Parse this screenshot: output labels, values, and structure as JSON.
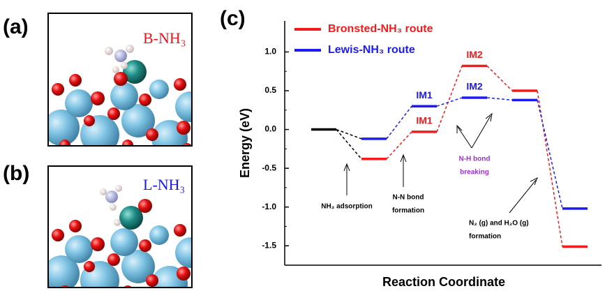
{
  "panels": [
    {
      "label": "(a)",
      "molecule": "B-NH₃",
      "color": "#e8141c"
    },
    {
      "label": "(b)",
      "molecule": "L-NH₃",
      "color": "#1a1aee"
    }
  ],
  "chart_data": {
    "type": "energy-levels",
    "panel_label": "(c)",
    "x_label": "Reaction Coordinate",
    "y_label": "Energy (eV)",
    "categories": [
      null,
      null,
      null,
      null,
      null,
      null
    ],
    "start_color": "#000000",
    "series": [
      {
        "name": "Bronsted-NH₃ route",
        "color": "#f21c1c",
        "values": [
          0,
          -0.38,
          -0.03,
          0.82,
          0.5,
          -1.51
        ],
        "level_labels": [
          null,
          null,
          "IM1",
          "IM2",
          null,
          null
        ]
      },
      {
        "name": "Lewis-NH₃ route",
        "color": "#1c1cf2",
        "values": [
          0,
          -0.12,
          0.3,
          0.41,
          0.38,
          -1.02
        ],
        "level_labels": [
          null,
          null,
          "IM1",
          "IM2",
          null,
          null
        ]
      }
    ],
    "ylim": [
      -1.75,
      1.4
    ],
    "yticks": [
      {
        "value": -1.5,
        "label": "-1.5"
      },
      {
        "value": -1,
        "label": "-1.0"
      },
      -0.5,
      {
        "value": 0,
        "label": "0.0"
      },
      0.5,
      {
        "value": 1,
        "label": "1.0"
      }
    ],
    "legend": "upper left",
    "annotations": [
      {
        "lines": [
          "NH₃ adsorption"
        ],
        "color": "#000000"
      },
      {
        "lines": [
          "N-N bond",
          "formation"
        ],
        "color": "#000000"
      },
      {
        "lines": [
          "N-H bond",
          "breaking"
        ],
        "color": "#9b30d0"
      },
      {
        "lines": [
          "N₂ (g) and H₂O (g)",
          "formation"
        ],
        "color": "#000000"
      }
    ]
  }
}
